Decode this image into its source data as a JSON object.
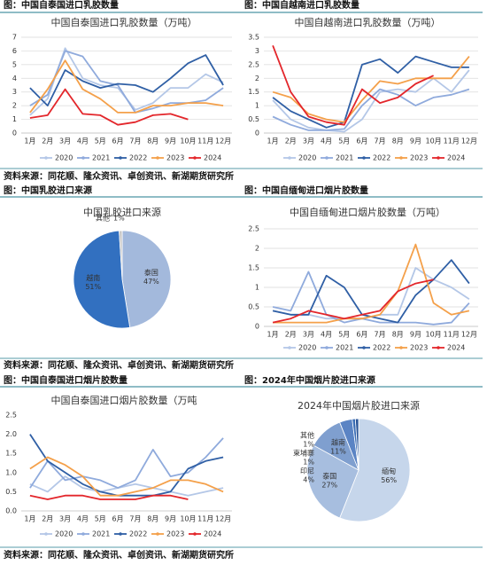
{
  "headers": [
    "图：中国自泰国进口乳胶数量",
    "图：中国自越南进口乳胶数量",
    "图：中国乳胶进口来源",
    "图：中国自缅甸进口烟片胶数量",
    "图：中国自泰国进口烟片胶数量",
    "图：2024年中国烟片胶进口来源"
  ],
  "sources": [
    "资料来源：同花顺、隆众资讯、卓创资讯、新湖期货研究所",
    "资料来源：同花顺、隆众资讯、卓创资讯、新湖期货研究所",
    "资料来源：同花顺、隆众资讯、卓创资讯、新湖期货研究所"
  ],
  "chart_data": [
    {
      "type": "line",
      "title": "中国自泰国进口乳胶数量（万吨）",
      "categories": [
        "1月",
        "2月",
        "3月",
        "4月",
        "5月",
        "6月",
        "7月",
        "8月",
        "9月",
        "10月",
        "11月",
        "12月"
      ],
      "ylim": [
        0,
        7
      ],
      "yticks": [
        0,
        1,
        2,
        3,
        4,
        5,
        6,
        7
      ],
      "grid": true,
      "series": [
        {
          "name": "2020",
          "color": "#b4c7e7",
          "values": [
            1.3,
            2.5,
            6.2,
            4.0,
            3.5,
            3.3,
            1.7,
            2.2,
            3.3,
            3.3,
            4.3,
            3.7
          ]
        },
        {
          "name": "2021",
          "color": "#8faadc",
          "values": [
            2.0,
            2.8,
            6.0,
            5.6,
            3.8,
            3.5,
            1.5,
            1.8,
            2.2,
            2.2,
            2.4,
            3.3
          ]
        },
        {
          "name": "2022",
          "color": "#2f5fa5",
          "values": [
            3.3,
            2.0,
            4.6,
            3.8,
            3.3,
            3.6,
            3.5,
            3.0,
            4.0,
            5.1,
            5.7,
            3.5
          ]
        },
        {
          "name": "2023",
          "color": "#f4a04a",
          "values": [
            1.5,
            3.2,
            5.3,
            3.2,
            2.5,
            1.5,
            1.5,
            2.0,
            2.0,
            2.2,
            2.2,
            2.0
          ]
        },
        {
          "name": "2024",
          "color": "#e3262b",
          "values": [
            1.1,
            1.3,
            3.2,
            1.4,
            1.3,
            0.6,
            0.8,
            1.3,
            1.4,
            1.0,
            null,
            null
          ]
        }
      ]
    },
    {
      "type": "line",
      "title": "中国自越南进口乳胶数量（万吨）",
      "categories": [
        "1月",
        "2月",
        "3月",
        "4月",
        "5月",
        "6月",
        "7月",
        "8月",
        "9月",
        "10月",
        "11月",
        "12月"
      ],
      "ylim": [
        0,
        3.5
      ],
      "yticks": [
        0,
        0.5,
        1,
        1.5,
        2,
        2.5,
        3,
        3.5
      ],
      "grid": true,
      "series": [
        {
          "name": "2020",
          "color": "#b4c7e7",
          "values": [
            1.2,
            0.5,
            0.2,
            0.1,
            0.05,
            0.5,
            1.5,
            1.6,
            1.5,
            2.0,
            1.5,
            2.3
          ]
        },
        {
          "name": "2021",
          "color": "#8faadc",
          "values": [
            0.6,
            0.3,
            0.1,
            0.1,
            0.15,
            1.0,
            1.6,
            1.4,
            1.0,
            1.3,
            1.4,
            1.6
          ]
        },
        {
          "name": "2022",
          "color": "#2f5fa5",
          "values": [
            1.3,
            0.8,
            0.5,
            0.2,
            0.4,
            2.5,
            2.7,
            2.2,
            2.8,
            2.6,
            2.4,
            2.4
          ]
        },
        {
          "name": "2023",
          "color": "#f4a04a",
          "values": [
            1.5,
            1.3,
            0.7,
            0.5,
            0.4,
            1.2,
            1.9,
            1.8,
            2.0,
            2.0,
            2.0,
            2.8
          ]
        },
        {
          "name": "2024",
          "color": "#e3262b",
          "values": [
            3.2,
            1.5,
            0.6,
            0.4,
            0.3,
            1.6,
            1.1,
            1.3,
            1.8,
            2.1,
            null,
            null
          ]
        }
      ]
    },
    {
      "type": "pie",
      "title": "中国乳胶进口来源",
      "categories": [
        "泰国",
        "越南",
        "其他"
      ],
      "values": [
        47,
        51,
        1
      ],
      "value_labels": [
        "47%",
        "51%",
        "1%"
      ],
      "colors": [
        "#a3b9dc",
        "#3270c0",
        "#c8c8c8"
      ]
    },
    {
      "type": "line",
      "title": "中国自缅甸进口烟片胶数量（万吨）",
      "categories": [
        "1月",
        "2月",
        "3月",
        "4月",
        "5月",
        "6月",
        "7月",
        "8月",
        "9月",
        "10月",
        "11月",
        "12月"
      ],
      "ylim": [
        0,
        2.5
      ],
      "yticks": [
        0,
        0.5,
        1,
        1.5,
        2,
        2.5
      ],
      "grid": true,
      "series": [
        {
          "name": "2020",
          "color": "#b4c7e7",
          "values": [
            0.4,
            0.3,
            0.3,
            0.2,
            0.2,
            0.2,
            0.3,
            0.3,
            1.5,
            1.2,
            1.0,
            0.7
          ]
        },
        {
          "name": "2021",
          "color": "#8faadc",
          "values": [
            0.5,
            0.4,
            1.4,
            0.3,
            0.1,
            0.2,
            0.1,
            0.1,
            0.1,
            0.05,
            0.1,
            0.6
          ]
        },
        {
          "name": "2022",
          "color": "#2f5fa5",
          "values": [
            0.4,
            0.3,
            0.3,
            1.3,
            1.0,
            0.3,
            0.2,
            0.1,
            0.8,
            1.2,
            1.7,
            1.1
          ]
        },
        {
          "name": "2023",
          "color": "#f4a04a",
          "values": [
            0.1,
            0.1,
            0.1,
            0.1,
            0.2,
            0.2,
            0.3,
            0.9,
            2.1,
            0.6,
            0.3,
            0.4
          ]
        },
        {
          "name": "2024",
          "color": "#e3262b",
          "values": [
            0.1,
            0.2,
            0.4,
            0.3,
            0.2,
            0.3,
            0.4,
            0.9,
            1.1,
            1.2,
            null,
            null
          ]
        }
      ]
    },
    {
      "type": "line",
      "title": "中国自泰国进口烟片胶数量（万吨",
      "categories": [
        "1月",
        "2月",
        "3月",
        "4月",
        "5月",
        "6月",
        "7月",
        "8月",
        "9月",
        "10月",
        "11月",
        "12月"
      ],
      "ylim": [
        0,
        2.5
      ],
      "yticks": [
        {
          "value": 0,
          "label": "0.0"
        },
        {
          "value": 0.5,
          "label": "0.5"
        },
        {
          "value": 1,
          "label": "1.0"
        },
        {
          "value": 1.5,
          "label": "1.5"
        },
        {
          "value": 2,
          "label": "2.0"
        },
        {
          "value": 2.5,
          "label": "2.5"
        }
      ],
      "grid": false,
      "series": [
        {
          "name": "2020",
          "color": "#b4c7e7",
          "values": [
            0.7,
            0.5,
            0.9,
            0.6,
            0.5,
            0.6,
            0.7,
            0.6,
            0.5,
            0.4,
            0.5,
            0.6
          ]
        },
        {
          "name": "2021",
          "color": "#8faadc",
          "values": [
            0.6,
            1.3,
            0.8,
            0.9,
            0.8,
            0.6,
            0.8,
            1.6,
            0.9,
            1.0,
            1.4,
            1.9
          ]
        },
        {
          "name": "2022",
          "color": "#2f5fa5",
          "values": [
            2.0,
            1.3,
            1.0,
            0.7,
            0.5,
            0.4,
            0.4,
            0.4,
            0.5,
            1.1,
            1.3,
            1.4
          ]
        },
        {
          "name": "2023",
          "color": "#f4a04a",
          "values": [
            1.1,
            1.4,
            1.2,
            0.9,
            0.4,
            0.4,
            0.5,
            0.6,
            0.8,
            0.8,
            0.7,
            0.5
          ]
        },
        {
          "name": "2024",
          "color": "#e3262b",
          "values": [
            0.4,
            0.3,
            0.4,
            0.4,
            0.3,
            0.3,
            0.3,
            0.4,
            0.4,
            0.3,
            null,
            null
          ]
        }
      ]
    },
    {
      "type": "pie",
      "title": "2024年中国烟片胶进口来源",
      "categories": [
        "缅甸",
        "泰国",
        "越南",
        "印尼",
        "柬埔寨",
        "其他"
      ],
      "values": [
        56,
        27,
        11,
        4,
        1,
        1
      ],
      "value_labels": [
        "56%",
        "27%",
        "11%",
        "4%",
        "1%",
        "1%"
      ],
      "colors": [
        "#c6d6eb",
        "#a7bedf",
        "#7f9fcf",
        "#5b84c4",
        "#3b6db5",
        "#2a5597"
      ]
    }
  ]
}
